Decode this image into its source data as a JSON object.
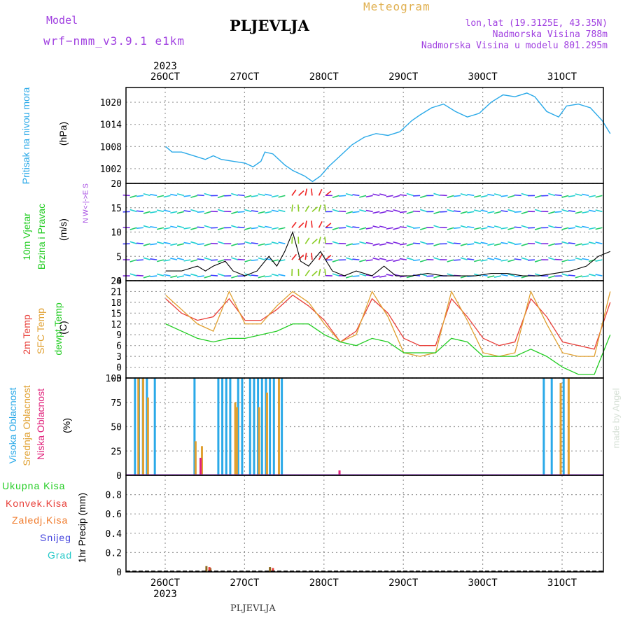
{
  "header": {
    "model_label": "Model",
    "model_name": "wrf−nmm_v3.9.1 e1km",
    "station": "PLJEVLJA",
    "meteogram": "Meteogram",
    "lonlat": "lon,lat (19.3125E, 43.35N)",
    "altitude": "Nadmorska Visina 788m",
    "model_altitude": "Nadmorska Visina u modelu 801.295m"
  },
  "colors": {
    "pressure": "#2aa9e8",
    "temp2m": "#e8403a",
    "sfc": "#e0a030",
    "dewpt": "#22cc22",
    "high_cloud": "#2aa9e8",
    "mid_cloud": "#e0a030",
    "low_cloud": "#e0207a",
    "precip_total": "#22cc22",
    "precip_conv": "#e8403a",
    "precip_frz": "#f07a2a",
    "snow": "#4444dd",
    "hail": "#22c8c8",
    "title_purple": "#a040e0",
    "meteogram_orange": "#e0b050"
  },
  "time_axis": {
    "year": "2023",
    "ticks": [
      "26OCT",
      "27OCT",
      "28OCT",
      "29OCT",
      "30OCT",
      "31OCT"
    ]
  },
  "panels": {
    "pressure": {
      "label": "Pritisak na nivou mora",
      "unit": "(hPa)"
    },
    "wind": {
      "label1": "10m Vjetar",
      "label2": "Brzina i Pravac",
      "unit": "(m/s)",
      "compass": "N  W<-|->E  S"
    },
    "temp": {
      "label1": "2m Temp",
      "label2": "SFC Temp",
      "label3": "dewpt Temp",
      "unit": "(C)"
    },
    "cloud": {
      "label1": "Visoka Oblacnost",
      "label2": "Srednja Oblacnost",
      "label3": "Niska Oblacnost",
      "unit": "(%)"
    },
    "precip": {
      "l1": "Ukupna Kisa",
      "l2": "Konvek.Kisa",
      "l3": "Zaledj.Kisa",
      "l4": "Snijeg",
      "l5": "Grad",
      "unit": "1hr Precip (mm)"
    }
  },
  "footer": {
    "station": "PLJEVLJA",
    "credit": "made by Angel"
  },
  "chart_data": [
    {
      "type": "line",
      "name": "pressure",
      "ylabel": "(hPa)",
      "ylim": [
        998,
        1024
      ],
      "yticks": [
        1002,
        1008,
        1014,
        1020
      ],
      "x_days": [
        0,
        0.08,
        0.2,
        0.35,
        0.5,
        0.6,
        0.7,
        0.85,
        1.0,
        1.1,
        1.2,
        1.25,
        1.35,
        1.5,
        1.6,
        1.75,
        1.85,
        1.95,
        2.05,
        2.2,
        2.35,
        2.5,
        2.65,
        2.8,
        2.95,
        3.1,
        3.2,
        3.35,
        3.5,
        3.65,
        3.8,
        3.95,
        4.1,
        4.25,
        4.4,
        4.55,
        4.65,
        4.8,
        4.95,
        5.05,
        5.2,
        5.35,
        5.5,
        5.6
      ],
      "y": [
        1008,
        1006.5,
        1006.5,
        1005.5,
        1004.5,
        1005.5,
        1004.5,
        1004,
        1003.5,
        1002.5,
        1004,
        1006.5,
        1006,
        1003,
        1001.5,
        1000,
        998.5,
        1000,
        1002.5,
        1005.5,
        1008.5,
        1010.5,
        1011.5,
        1011,
        1012,
        1015,
        1016.5,
        1018.5,
        1019.5,
        1017.5,
        1016,
        1017,
        1020,
        1022,
        1021.5,
        1022.5,
        1021.5,
        1017.5,
        1016,
        1019,
        1019.5,
        1018.5,
        1015,
        1011.5
      ]
    },
    {
      "type": "line",
      "name": "wind_speed_10m",
      "ylabel": "(m/s)",
      "ylim": [
        0,
        20
      ],
      "yticks": [
        0,
        5,
        10,
        15,
        20
      ],
      "x_days": [
        0,
        0.2,
        0.4,
        0.5,
        0.6,
        0.75,
        0.85,
        1.0,
        1.15,
        1.3,
        1.4,
        1.5,
        1.6,
        1.7,
        1.8,
        1.95,
        2.1,
        2.25,
        2.4,
        2.6,
        2.75,
        2.9,
        3.1,
        3.3,
        3.5,
        3.7,
        3.9,
        4.1,
        4.3,
        4.5,
        4.7,
        4.9,
        5.1,
        5.3,
        5.45,
        5.6
      ],
      "y": [
        2,
        2,
        3,
        2,
        3,
        4,
        2,
        1,
        2,
        5,
        3,
        6,
        10,
        4,
        3,
        6,
        2,
        1,
        2,
        1,
        3,
        1,
        1,
        1.5,
        1,
        1,
        1,
        1.5,
        1.5,
        1,
        1,
        1.5,
        2,
        3,
        5,
        6
      ]
    },
    {
      "type": "line",
      "name": "temperatures",
      "ylabel": "(C)",
      "ylim": [
        -3,
        24
      ],
      "yticks": [
        -3,
        0,
        3,
        6,
        9,
        12,
        15,
        18,
        21,
        24
      ],
      "x_days": [
        0,
        0.2,
        0.4,
        0.6,
        0.8,
        1.0,
        1.2,
        1.4,
        1.6,
        1.8,
        2.0,
        2.2,
        2.4,
        2.6,
        2.8,
        3.0,
        3.2,
        3.4,
        3.6,
        3.8,
        4.0,
        4.2,
        4.4,
        4.6,
        4.8,
        5.0,
        5.2,
        5.4,
        5.6
      ],
      "series": [
        {
          "name": "2m Temp",
          "y": [
            19,
            15,
            13,
            14,
            19,
            13,
            13,
            16,
            20,
            17,
            13,
            7,
            10,
            19,
            15,
            8,
            6,
            6,
            19,
            14,
            8,
            6,
            7,
            19,
            14,
            7,
            6,
            5,
            18
          ]
        },
        {
          "name": "SFC Temp",
          "y": [
            20,
            16,
            12,
            10,
            21,
            12,
            12,
            17,
            21,
            18,
            12,
            7,
            9,
            21,
            14,
            4,
            3,
            4,
            21,
            13,
            4,
            3,
            4,
            21,
            12,
            4,
            3,
            3,
            21
          ]
        },
        {
          "name": "dewpt Temp",
          "y": [
            12,
            10,
            8,
            7,
            8,
            8,
            9,
            10,
            12,
            12,
            9,
            7,
            6,
            8,
            7,
            4,
            4,
            4,
            8,
            7,
            3,
            3,
            3,
            5,
            3,
            0,
            -2,
            -2,
            9
          ]
        }
      ]
    },
    {
      "type": "bar",
      "name": "cloudiness",
      "ylabel": "(%)",
      "ylim": [
        0,
        100
      ],
      "yticks": [
        0,
        25,
        50,
        75,
        100
      ],
      "series": [
        {
          "name": "Visoka Oblacnost",
          "x_days": [
            0.05,
            0.1,
            0.15,
            0.2,
            0.3,
            0.8,
            1.1,
            1.15,
            1.2,
            1.25,
            1.35,
            1.4,
            1.5,
            1.55,
            1.6,
            1.65,
            1.7,
            1.75,
            1.8,
            1.9,
            5.2,
            5.3,
            5.45
          ],
          "y": [
            100,
            100,
            100,
            100,
            100,
            100,
            100,
            100,
            100,
            100,
            100,
            100,
            100,
            100,
            100,
            100,
            100,
            100,
            100,
            100,
            100,
            100,
            100
          ]
        },
        {
          "name": "Srednja Oblacnost",
          "x_days": [
            0.08,
            0.14,
            0.2,
            0.8,
            0.88,
            1.3,
            1.32,
            1.6,
            1.7,
            1.85,
            5.4,
            5.5
          ],
          "y": [
            100,
            100,
            80,
            35,
            30,
            75,
            70,
            70,
            85,
            100,
            95,
            100
          ]
        },
        {
          "name": "Niska Oblacnost",
          "x_days": [
            0.85,
            2.6,
            3.0
          ],
          "y": [
            18,
            5,
            1
          ]
        }
      ]
    },
    {
      "type": "bar",
      "name": "precipitation",
      "ylabel": "1hr Precip (mm)",
      "ylim": [
        0,
        1.0
      ],
      "yticks": [
        0,
        0.2,
        0.4,
        0.6,
        0.8
      ],
      "series": [
        {
          "name": "Ukupna Kisa",
          "x_days": [
            0.95,
            1.0,
            1.75
          ],
          "y": [
            0.06,
            0.04,
            0.05
          ]
        },
        {
          "name": "Konvek.Kisa",
          "x_days": [
            0.97,
            1.77
          ],
          "y": [
            0.05,
            0.04
          ]
        }
      ]
    }
  ]
}
